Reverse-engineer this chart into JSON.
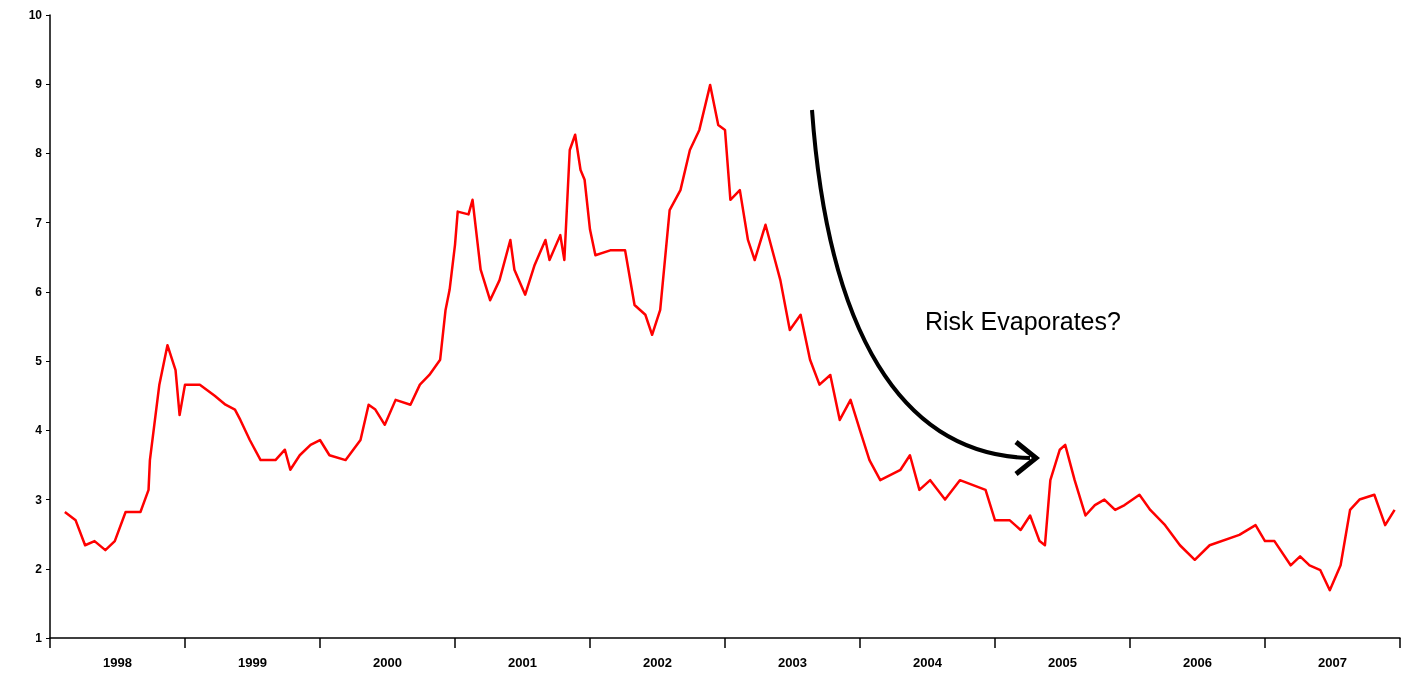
{
  "chart_data": {
    "type": "line",
    "annotations": [
      "Risk Evaporates?"
    ],
    "xlim": [
      1998,
      2008
    ],
    "xticks": [
      {
        "value": 1998,
        "label": null
      },
      {
        "value": 1999,
        "label": null
      },
      {
        "value": 2000,
        "label": null
      },
      {
        "value": 2001,
        "label": null
      },
      {
        "value": 2002,
        "label": null
      },
      {
        "value": 2003,
        "label": null
      },
      {
        "value": 2004,
        "label": null
      },
      {
        "value": 2005,
        "label": null
      },
      {
        "value": 2006,
        "label": null
      },
      {
        "value": 2007,
        "label": null
      },
      {
        "value": 2008,
        "label": null
      },
      {
        "value": 1998.5,
        "label": "1998"
      },
      {
        "value": 1999.5,
        "label": "1999"
      },
      {
        "value": 2000.5,
        "label": "2000"
      },
      {
        "value": 2001.5,
        "label": "2001"
      },
      {
        "value": 2002.5,
        "label": "2002"
      },
      {
        "value": 2003.5,
        "label": "2003"
      },
      {
        "value": 2004.5,
        "label": "2004"
      },
      {
        "value": 2005.5,
        "label": "2005"
      },
      {
        "value": 2006.5,
        "label": "2006"
      },
      {
        "value": 2007.5,
        "label": "2007"
      }
    ],
    "ylim": [
      1,
      10
    ],
    "yticks": [
      1,
      2,
      3,
      4,
      5,
      6,
      7,
      8,
      9,
      10
    ],
    "grid": false,
    "marker": "none",
    "line_style": "solid",
    "series": [
      {
        "color": "#ff0000",
        "x": [
          1998.11,
          1998.19,
          1998.26,
          1998.33,
          1998.41,
          1998.48,
          1998.56,
          1998.67,
          1998.73,
          1998.74,
          1998.81,
          1998.87,
          1998.93,
          1998.96,
          1999.0,
          1999.11,
          1999.22,
          1999.3,
          1999.37,
          1999.41,
          1999.48,
          1999.56,
          1999.67,
          1999.74,
          1999.78,
          1999.85,
          1999.93,
          2000.0,
          2000.07,
          2000.19,
          2000.3,
          2000.36,
          2000.41,
          2000.48,
          2000.56,
          2000.67,
          2000.74,
          2000.81,
          2000.89,
          2000.93,
          2000.96,
          2001.0,
          2001.02,
          2001.1,
          2001.13,
          2001.19,
          2001.26,
          2001.33,
          2001.41,
          2001.44,
          2001.52,
          2001.59,
          2001.67,
          2001.7,
          2001.78,
          2001.81,
          2001.85,
          2001.89,
          2001.93,
          2001.96,
          2002.0,
          2002.04,
          2002.15,
          2002.26,
          2002.33,
          2002.41,
          2002.46,
          2002.52,
          2002.59,
          2002.67,
          2002.74,
          2002.81,
          2002.89,
          2002.95,
          2003.0,
          2003.04,
          2003.11,
          2003.17,
          2003.22,
          2003.3,
          2003.37,
          2003.41,
          2003.48,
          2003.56,
          2003.63,
          2003.7,
          2003.78,
          2003.85,
          2003.93,
          2004.0,
          2004.07,
          2004.15,
          2004.3,
          2004.37,
          2004.44,
          2004.52,
          2004.63,
          2004.74,
          2004.93,
          2005.0,
          2005.11,
          2005.19,
          2005.26,
          2005.33,
          2005.37,
          2005.41,
          2005.48,
          2005.52,
          2005.59,
          2005.67,
          2005.74,
          2005.81,
          2005.89,
          2005.96,
          2006.07,
          2006.15,
          2006.26,
          2006.37,
          2006.48,
          2006.59,
          2006.81,
          2006.93,
          2007.0,
          2007.07,
          2007.19,
          2007.26,
          2007.33,
          2007.41,
          2007.48,
          2007.56,
          2007.63,
          2007.7,
          2007.81,
          2007.89,
          2007.96
        ],
        "values": [
          2.82,
          2.7,
          2.34,
          2.4,
          2.27,
          2.4,
          2.82,
          2.82,
          3.14,
          3.57,
          4.66,
          5.23,
          4.87,
          4.22,
          4.66,
          4.66,
          4.5,
          4.37,
          4.3,
          4.15,
          3.86,
          3.57,
          3.57,
          3.72,
          3.43,
          3.64,
          3.79,
          3.86,
          3.64,
          3.57,
          3.86,
          4.37,
          4.3,
          4.08,
          4.44,
          4.37,
          4.66,
          4.8,
          5.02,
          5.74,
          6.03,
          6.68,
          7.16,
          7.12,
          7.33,
          6.32,
          5.88,
          6.17,
          6.75,
          6.32,
          5.96,
          6.39,
          6.75,
          6.46,
          6.82,
          6.46,
          8.05,
          8.27,
          7.76,
          7.62,
          6.9,
          6.53,
          6.6,
          6.6,
          5.81,
          5.67,
          5.38,
          5.74,
          7.18,
          7.47,
          8.05,
          8.34,
          8.99,
          8.41,
          8.34,
          7.33,
          7.47,
          6.75,
          6.46,
          6.97,
          6.46,
          6.17,
          5.45,
          5.67,
          5.02,
          4.66,
          4.8,
          4.15,
          4.44,
          4.0,
          3.57,
          3.28,
          3.43,
          3.64,
          3.14,
          3.28,
          3.0,
          3.28,
          3.14,
          2.7,
          2.7,
          2.56,
          2.77,
          2.4,
          2.34,
          3.28,
          3.72,
          3.79,
          3.28,
          2.77,
          2.92,
          3.0,
          2.85,
          2.92,
          3.07,
          2.85,
          2.63,
          2.34,
          2.13,
          2.34,
          2.49,
          2.63,
          2.4,
          2.4,
          2.05,
          2.18,
          2.05,
          1.98,
          1.69,
          2.05,
          2.85,
          3.0,
          3.07,
          2.63,
          2.85
        ]
      }
    ]
  }
}
